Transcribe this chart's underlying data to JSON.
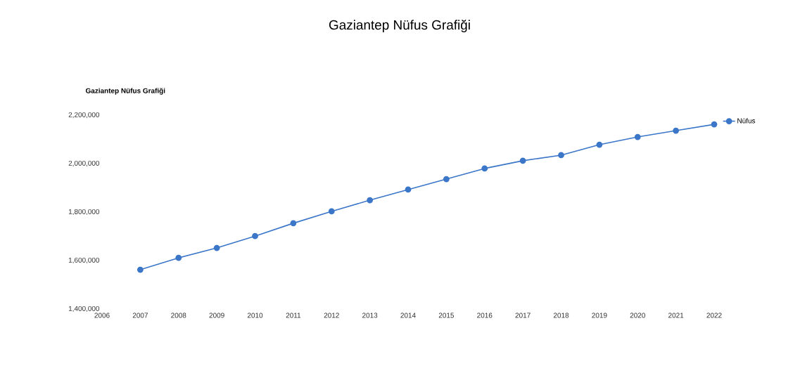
{
  "chart_data": {
    "type": "line",
    "title": "Gaziantep Nüfus Grafiği",
    "subtitle": "**Gaziantep Nüfus Grafiği**",
    "x": [
      2007,
      2008,
      2009,
      2010,
      2011,
      2012,
      2013,
      2014,
      2015,
      2016,
      2017,
      2018,
      2019,
      2020,
      2021,
      2022
    ],
    "series": [
      {
        "name": "Nüfus",
        "color": "#3b76c8",
        "values": [
          1562000,
          1611000,
          1652000,
          1701000,
          1754000,
          1803000,
          1849000,
          1893000,
          1936000,
          1980000,
          2012000,
          2035000,
          2078000,
          2110000,
          2136000,
          2162000
        ]
      }
    ],
    "xlim": [
      2006,
      2022
    ],
    "xticks": [
      2006,
      2007,
      2008,
      2009,
      2010,
      2011,
      2012,
      2013,
      2014,
      2015,
      2016,
      2017,
      2018,
      2019,
      2020,
      2021,
      2022
    ],
    "ylim": [
      1400000,
      2200000
    ],
    "yticks": [
      {
        "value": 1400000,
        "label": "1,400,000"
      },
      {
        "value": 1600000,
        "label": "1,600,000"
      },
      {
        "value": 1800000,
        "label": "1,800,000"
      },
      {
        "value": 2000000,
        "label": "2,000,000"
      },
      {
        "value": 2200000,
        "label": "2,200,000"
      }
    ],
    "grid": false,
    "legend": "top right",
    "marker": "circle",
    "line_style": "solid"
  }
}
